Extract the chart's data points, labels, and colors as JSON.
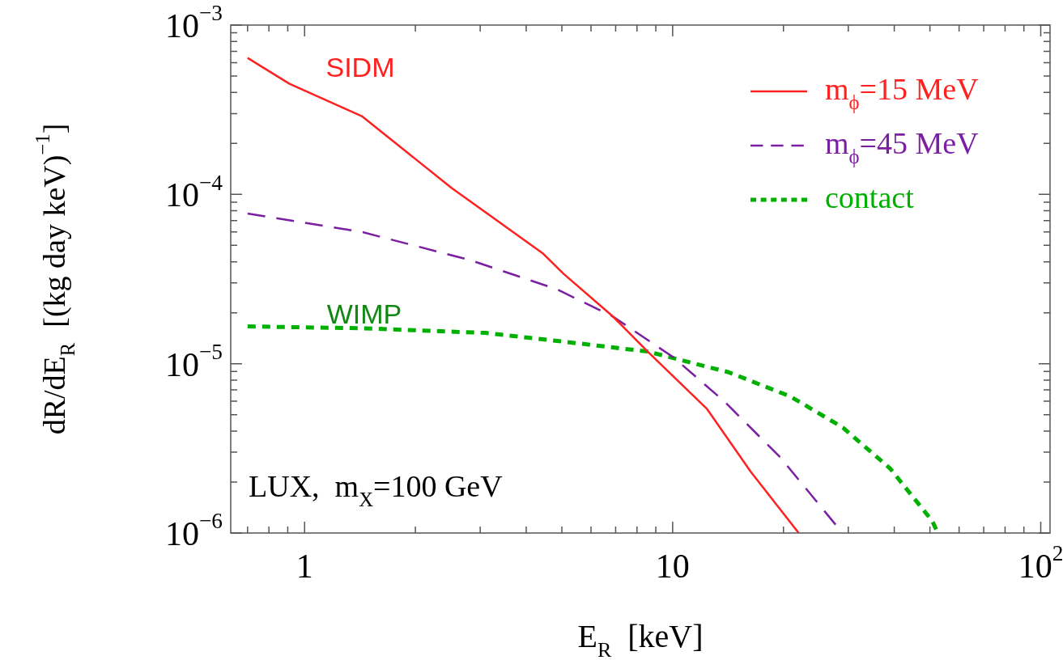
{
  "chart_data": {
    "type": "line",
    "xlabel": "E$_{R}$  [keV]",
    "ylabel": "dR/dE$_{R}$  [(kg day keV)$^{−1}$]",
    "log": "xy",
    "legend": "top right",
    "xlim": [
      0.63,
      106
    ],
    "ylim": [
      1e-06,
      0.001
    ],
    "xticks": [
      {
        "value": 0.7,
        "label": null
      },
      {
        "value": 0.8,
        "label": null
      },
      {
        "value": 0.9,
        "label": null
      },
      1,
      {
        "value": 2,
        "label": null
      },
      {
        "value": 3,
        "label": null
      },
      {
        "value": 4,
        "label": null
      },
      {
        "value": 5,
        "label": null
      },
      {
        "value": 6,
        "label": null
      },
      {
        "value": 7,
        "label": null
      },
      {
        "value": 8,
        "label": null
      },
      {
        "value": 9,
        "label": null
      },
      10,
      {
        "value": 20,
        "label": null
      },
      {
        "value": 30,
        "label": null
      },
      {
        "value": 40,
        "label": null
      },
      {
        "value": 50,
        "label": null
      },
      {
        "value": 60,
        "label": null
      },
      {
        "value": 70,
        "label": null
      },
      {
        "value": 80,
        "label": null
      },
      {
        "value": 90,
        "label": null
      },
      {
        "value": 100,
        "label": "10$^{2}$"
      }
    ],
    "yticks": [
      {
        "value": 1e-06,
        "label": "10$^{−6}$"
      },
      {
        "value": 2e-06,
        "label": null
      },
      {
        "value": 3e-06,
        "label": null
      },
      {
        "value": 4e-06,
        "label": null
      },
      {
        "value": 5e-06,
        "label": null
      },
      {
        "value": 6e-06,
        "label": null
      },
      {
        "value": 7e-06,
        "label": null
      },
      {
        "value": 8e-06,
        "label": null
      },
      {
        "value": 9e-06,
        "label": null
      },
      {
        "value": 1e-05,
        "label": "10$^{−5}$"
      },
      {
        "value": 2e-05,
        "label": null
      },
      {
        "value": 3e-05,
        "label": null
      },
      {
        "value": 4e-05,
        "label": null
      },
      {
        "value": 5e-05,
        "label": null
      },
      {
        "value": 6e-05,
        "label": null
      },
      {
        "value": 7e-05,
        "label": null
      },
      {
        "value": 8e-05,
        "label": null
      },
      {
        "value": 9e-05,
        "label": null
      },
      {
        "value": 0.0001,
        "label": "10$^{−4}$"
      },
      {
        "value": 0.0002,
        "label": null
      },
      {
        "value": 0.0003,
        "label": null
      },
      {
        "value": 0.0004,
        "label": null
      },
      {
        "value": 0.0005,
        "label": null
      },
      {
        "value": 0.0006,
        "label": null
      },
      {
        "value": 0.0007,
        "label": null
      },
      {
        "value": 0.0008,
        "label": null
      },
      {
        "value": 0.0009,
        "label": null
      },
      {
        "value": 0.001,
        "label": "10$^{−3}$"
      }
    ],
    "series": [
      {
        "name": "m$_{ϕ}$=15 MeV",
        "color": "#ff2020",
        "line_style": "solid",
        "x": [
          0.7,
          0.91,
          1.43,
          2.51,
          4.43,
          5.05,
          6.88,
          8.55,
          12.4,
          16.3,
          22
        ],
        "values": [
          0.00064,
          0.00045,
          0.00029,
          0.000109,
          4.5e-05,
          3.4e-05,
          1.9e-05,
          1.18e-05,
          5.4e-06,
          2.3e-06,
          1e-06
        ]
      },
      {
        "name": "m$_{ϕ}$=45 MeV",
        "color": "#7b1fa2",
        "line_style": "dashed",
        "x": [
          0.7,
          1.43,
          2.81,
          4.85,
          6.88,
          10.05,
          13.8,
          19.6,
          28.2
        ],
        "values": [
          7.7e-05,
          6e-05,
          4.1e-05,
          2.75e-05,
          1.9e-05,
          1.09e-05,
          6e-06,
          2.8e-06,
          1.07e-06
        ]
      },
      {
        "name": "contact",
        "color": "#00b000",
        "line_style": "dotted",
        "x": [
          0.7,
          1.43,
          3.1,
          5.05,
          8.55,
          14.2,
          20.9,
          29,
          39,
          50.7,
          52
        ],
        "values": [
          1.66e-05,
          1.62e-05,
          1.52e-05,
          1.35e-05,
          1.18e-05,
          8.9e-06,
          6.4e-06,
          4.2e-06,
          2.4e-06,
          1.18e-06,
          1.05e-06
        ]
      }
    ],
    "annotations": [
      "SIDM",
      "WIMP",
      "LUX,  m$_{X}$=100 GeV"
    ]
  }
}
